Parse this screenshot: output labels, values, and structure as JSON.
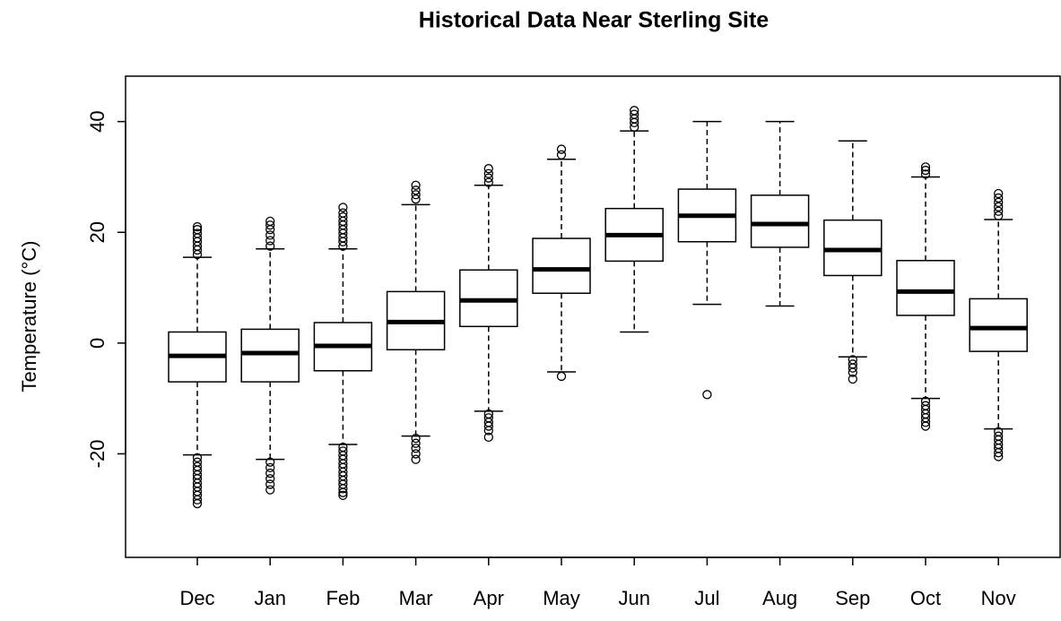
{
  "chart_data": {
    "type": "box",
    "title": "Historical Data Near Sterling Site",
    "y_label": "Temperature (°C)",
    "categories": [
      "Dec",
      "Jan",
      "Feb",
      "Mar",
      "Apr",
      "May",
      "Jun",
      "Jul",
      "Aug",
      "Sep",
      "Oct",
      "Nov"
    ],
    "boxes": [
      {
        "whisker_low": -20.2,
        "q1": -7,
        "median": -2.3,
        "q3": 2,
        "whisker_high": 15.5,
        "outliers": [
          16,
          16.8,
          17.5,
          18.3,
          19,
          19.8,
          20.5,
          21,
          -20.7,
          -21.5,
          -22.3,
          -23,
          -23.8,
          -24.5,
          -25.3,
          -26,
          -26.8,
          -27.5,
          -28.3,
          -29
        ]
      },
      {
        "whisker_low": -21,
        "q1": -7,
        "median": -1.8,
        "q3": 2.5,
        "whisker_high": 17,
        "outliers": [
          17.5,
          18.5,
          19.5,
          20.5,
          21.3,
          22,
          -21.5,
          -22.5,
          -23.5,
          -24.5,
          -25.5,
          -26.5
        ]
      },
      {
        "whisker_low": -18.3,
        "q1": -5,
        "median": -0.5,
        "q3": 3.7,
        "whisker_high": 17,
        "outliers": [
          17.5,
          18.3,
          19,
          19.8,
          20.5,
          21.3,
          22,
          22.8,
          23.5,
          24.5,
          -18.8,
          -19.5,
          -20.3,
          -21,
          -21.8,
          -22.5,
          -23.3,
          -24,
          -24.8,
          -25.5,
          -26.3,
          -27,
          -27.5
        ]
      },
      {
        "whisker_low": -16.8,
        "q1": -1.2,
        "median": 3.8,
        "q3": 9.3,
        "whisker_high": 25,
        "outliers": [
          26,
          26.8,
          27.6,
          28.5,
          -17.2,
          -18.1,
          -19,
          -20,
          -21
        ]
      },
      {
        "whisker_low": -12.3,
        "q1": 3,
        "median": 7.7,
        "q3": 13.2,
        "whisker_high": 28.5,
        "outliers": [
          29,
          29.8,
          30.6,
          31.5,
          -12.8,
          -13.5,
          -14.3,
          -15,
          -15.8,
          -17
        ]
      },
      {
        "whisker_low": -5.2,
        "q1": 9,
        "median": 13.3,
        "q3": 18.9,
        "whisker_high": 33.2,
        "outliers": [
          34,
          35,
          -6
        ]
      },
      {
        "whisker_low": 2,
        "q1": 14.8,
        "median": 19.5,
        "q3": 24.3,
        "whisker_high": 38.3,
        "outliers": [
          39,
          39.8,
          40.5,
          41.3,
          42
        ]
      },
      {
        "whisker_low": 7,
        "q1": 18.3,
        "median": 23,
        "q3": 27.8,
        "whisker_high": 40,
        "outliers": [
          -9.3
        ]
      },
      {
        "whisker_low": 6.7,
        "q1": 17.3,
        "median": 21.5,
        "q3": 26.7,
        "whisker_high": 40,
        "outliers": []
      },
      {
        "whisker_low": -2.5,
        "q1": 12.2,
        "median": 16.8,
        "q3": 22.2,
        "whisker_high": 36.5,
        "outliers": [
          -3,
          -3.8,
          -4.5,
          -5.3,
          -6.5
        ]
      },
      {
        "whisker_low": -10,
        "q1": 5,
        "median": 9.3,
        "q3": 14.9,
        "whisker_high": 30,
        "outliers": [
          30.5,
          31.2,
          31.8,
          -10.5,
          -11.3,
          -12,
          -12.8,
          -13.5,
          -14.3,
          -15
        ]
      },
      {
        "whisker_low": -15.5,
        "q1": -1.5,
        "median": 2.7,
        "q3": 8,
        "whisker_high": 22.3,
        "outliers": [
          23,
          23.8,
          24.6,
          25.4,
          26.2,
          27,
          -16,
          -16.8,
          -17.5,
          -18.3,
          -19,
          -19.8,
          -20.5
        ]
      }
    ],
    "ylim": [
      -38.7,
      48.2
    ],
    "yticks": [
      -20,
      0,
      20,
      40
    ],
    "color": "#000000"
  }
}
